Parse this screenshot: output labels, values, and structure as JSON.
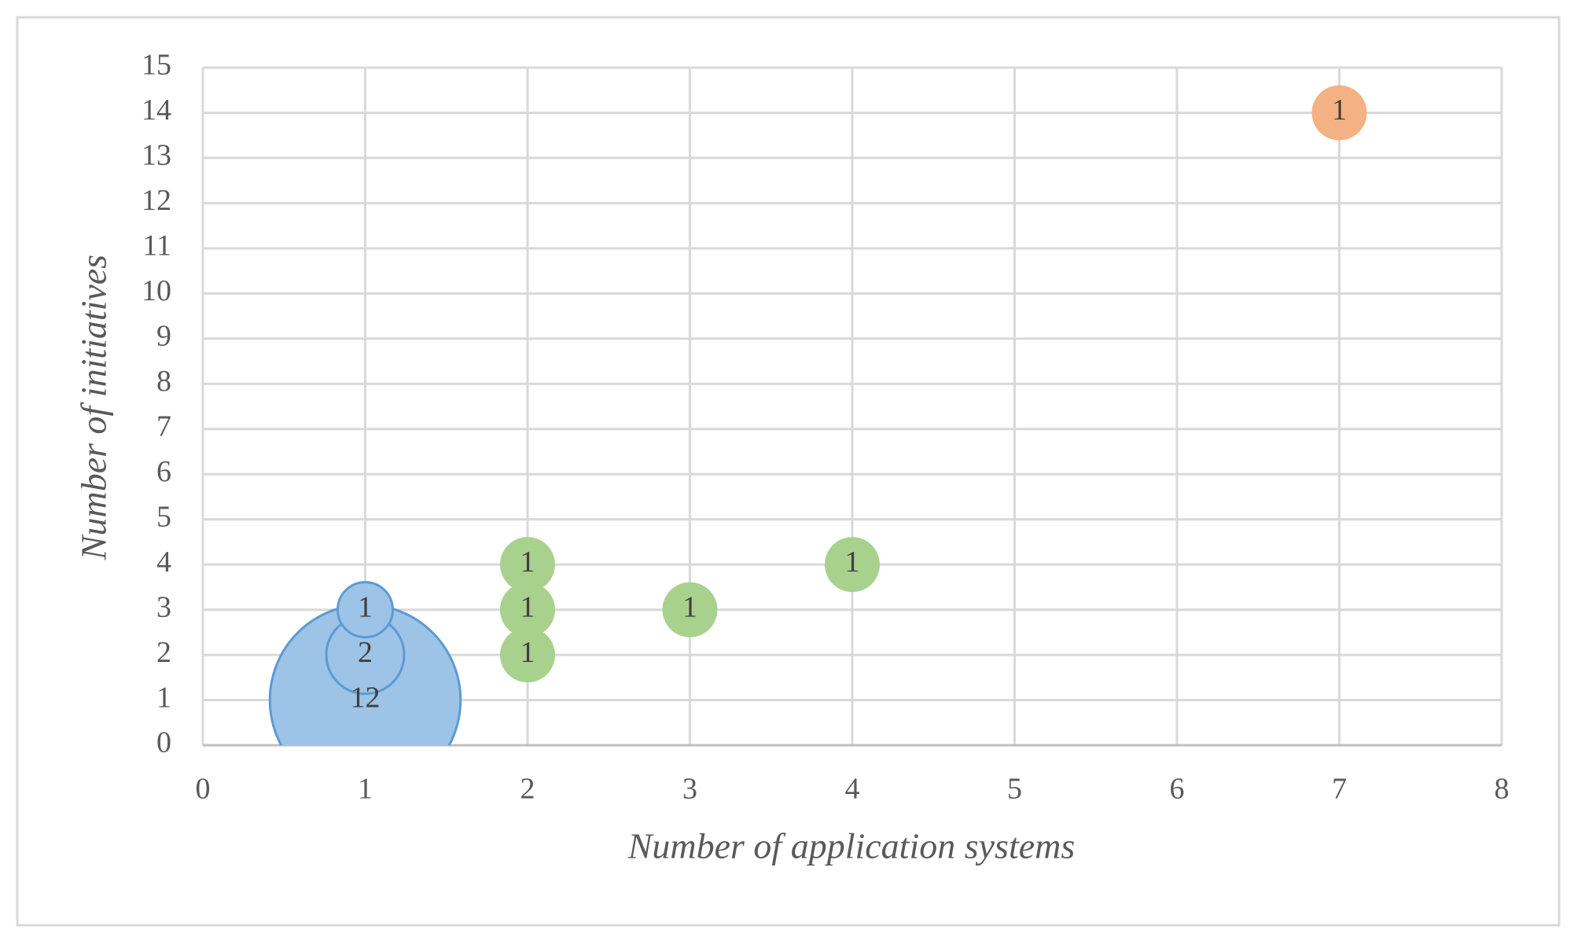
{
  "chart_data": {
    "type": "bubble",
    "x_label": "Number of application systems",
    "y_label": "Number of initiatives",
    "xlim": [
      0,
      8
    ],
    "xticks": [
      0,
      1,
      2,
      3,
      4,
      5,
      6,
      7,
      8
    ],
    "ylim": [
      0,
      15
    ],
    "yticks": [
      0,
      1,
      2,
      3,
      4,
      5,
      6,
      7,
      8,
      9,
      10,
      11,
      12,
      13,
      14,
      15
    ],
    "grid": true,
    "series": [
      {
        "color": "#9dc3e6",
        "edgecolor": "#5b9bd5",
        "x": [
          1,
          1,
          1
        ],
        "values": [
          1,
          2,
          3
        ],
        "sizes": [
          12,
          2,
          1
        ]
      },
      {
        "color": "#a9d18e",
        "x": [
          2,
          2,
          2,
          3,
          4
        ],
        "values": [
          4,
          3,
          2,
          3,
          4
        ],
        "sizes": [
          1,
          1,
          1,
          1,
          1
        ]
      },
      {
        "color": "#f4b183",
        "x": [
          7
        ],
        "values": [
          14
        ],
        "sizes": [
          1
        ]
      }
    ]
  }
}
